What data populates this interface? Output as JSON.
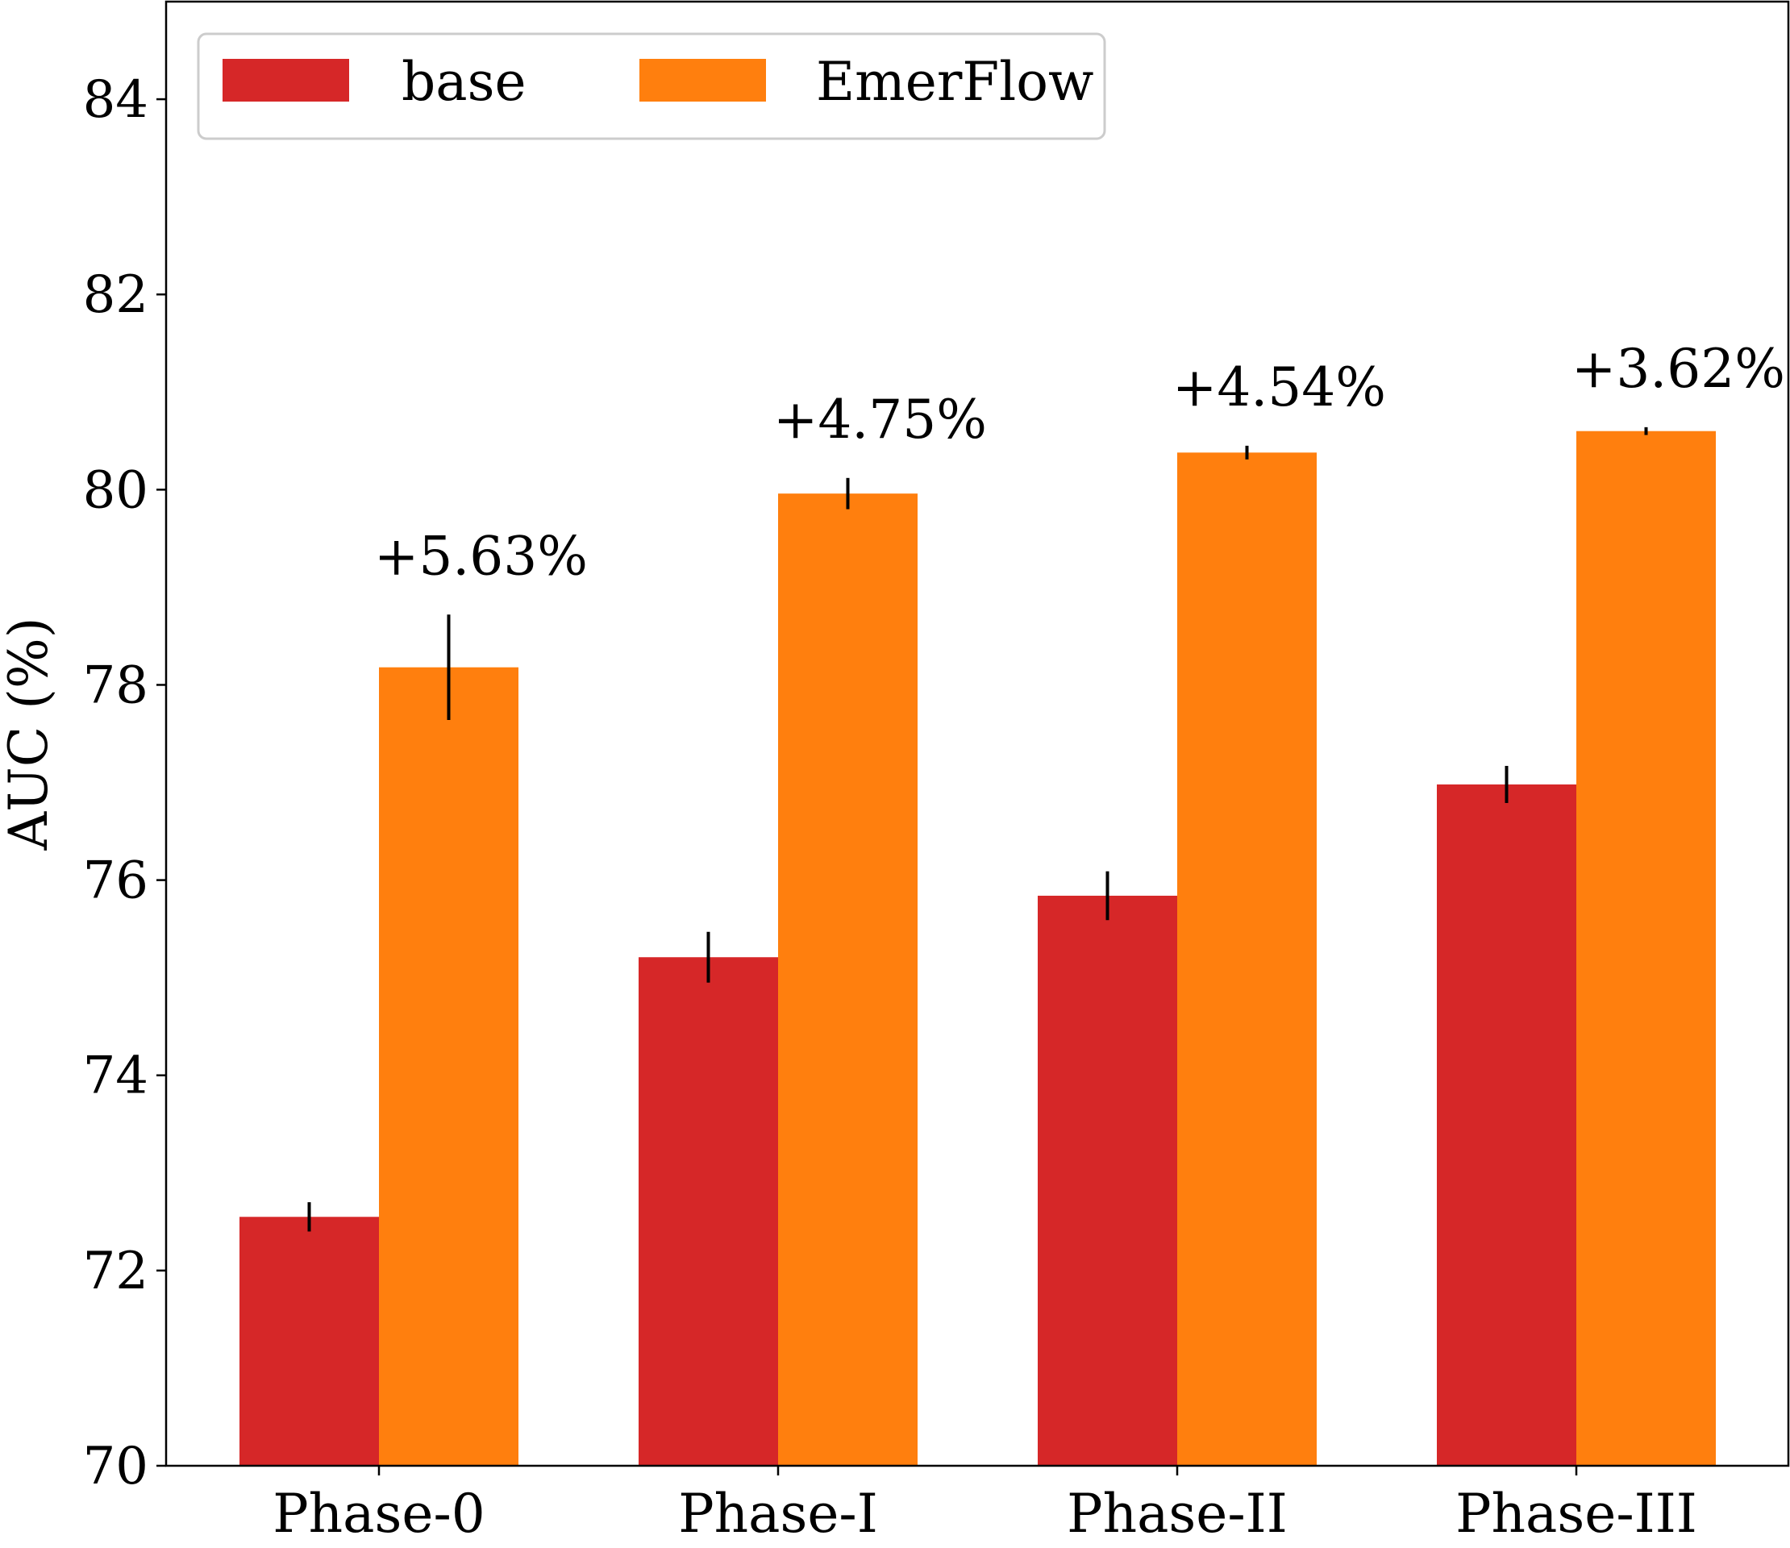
{
  "chart_data": {
    "type": "bar",
    "title": "",
    "xlabel": "",
    "ylabel": "AUC (%)",
    "ylim": [
      70,
      85
    ],
    "yticks": [
      70,
      72,
      74,
      76,
      78,
      80,
      82,
      84
    ],
    "categories": [
      "Phase-0",
      "Phase-I",
      "Phase-II",
      "Phase-III"
    ],
    "series": [
      {
        "name": "base",
        "color": "#d62728",
        "values": [
          72.55,
          75.21,
          75.84,
          76.98
        ],
        "errors": [
          0.15,
          0.26,
          0.25,
          0.19
        ]
      },
      {
        "name": "EmerFlow",
        "color": "#ff7f0e",
        "values": [
          78.18,
          79.96,
          80.38,
          80.6
        ],
        "errors": [
          0.54,
          0.16,
          0.07,
          0.04
        ]
      }
    ],
    "annotations": [
      "+5.63%",
      "+4.75%",
      "+4.54%",
      "+3.62%"
    ],
    "legend": {
      "position": "top-left",
      "entries": [
        "base",
        "EmerFlow"
      ]
    },
    "grid": false
  }
}
